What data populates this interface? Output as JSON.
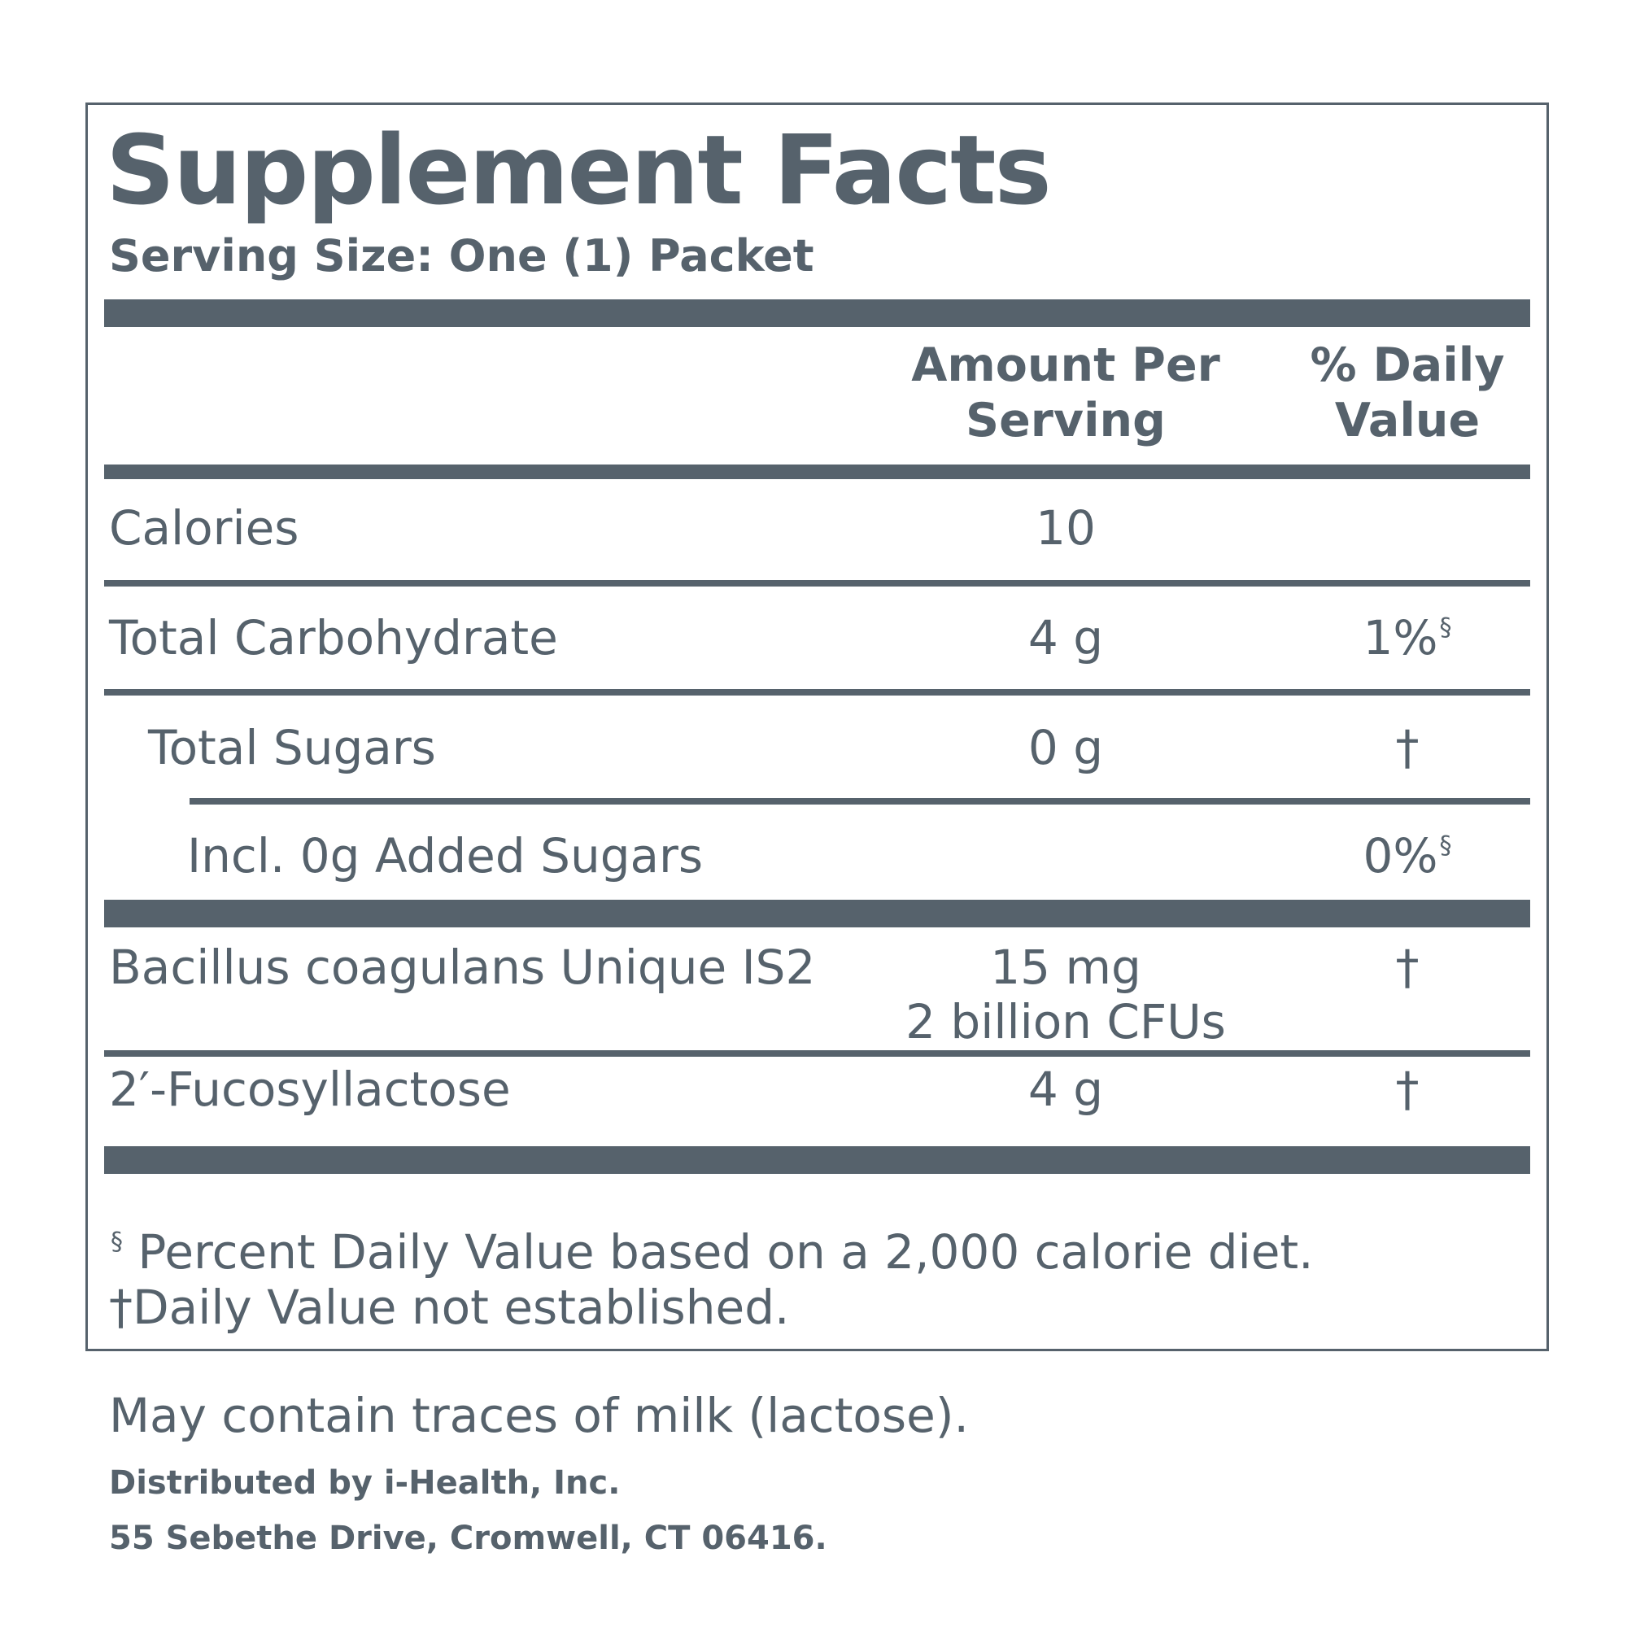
{
  "title": "Supplement Facts",
  "serving_size": "Serving Size: One (1) Packet",
  "columns": {
    "amount": "Amount Per Serving",
    "daily_value": "% Daily Value"
  },
  "rows": {
    "calories": {
      "name": "Calories",
      "amount": "10"
    },
    "total_carbohydrate": {
      "name": "Total Carbohydrate",
      "amount": "4 g",
      "dv": "1%",
      "dv_mark": "§"
    },
    "total_sugars": {
      "name": "Total Sugars",
      "amount": "0 g",
      "dv": "†"
    },
    "added_sugars": {
      "name": "Incl. 0g Added Sugars",
      "dv": "0%",
      "dv_mark": "§"
    },
    "bacillus": {
      "name_italic": "Bacillus coagulans",
      "name_rest": " Unique IS2",
      "amount_line1": "15 mg",
      "amount_line2": "2 billion CFUs",
      "dv": "†"
    },
    "fucosyllactose": {
      "name": "2′-Fucosyllactose",
      "amount": "4 g",
      "dv": "†"
    }
  },
  "footnotes": {
    "mark": "§",
    "line1": " Percent Daily Value based on a 2,000 calorie diet.",
    "line2": "†Daily Value not established."
  },
  "allergen": "May contain traces of milk (lactose).",
  "distributor": "Distributed by i-Health, Inc.",
  "address": "55 Sebethe Drive, Cromwell, CT 06416.",
  "colors": {
    "ink": "#56626c",
    "background": "#ffffff"
  }
}
